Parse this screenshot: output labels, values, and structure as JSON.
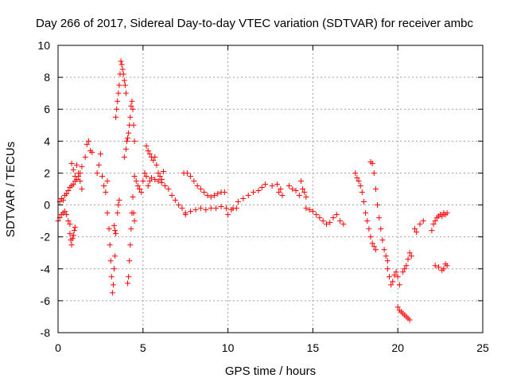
{
  "chart_data": {
    "type": "scatter",
    "title": "Day 266 of 2017, Sidereal Day-to-day VTEC variation (SDTVAR) for receiver ambc",
    "xlabel": "GPS time / hours",
    "ylabel": "SDTVAR / TECUs",
    "xlim": [
      0,
      25
    ],
    "ylim": [
      -8,
      10
    ],
    "xticks": [
      0,
      5,
      10,
      15,
      20,
      25
    ],
    "yticks": [
      -8,
      -6,
      -4,
      -2,
      0,
      2,
      4,
      6,
      8,
      10
    ],
    "grid": true,
    "marker": "+",
    "color": "#ff0000",
    "series": [
      {
        "name": "seg1",
        "x": [
          0.0,
          0.1,
          0.2,
          0.3,
          0.4,
          0.5,
          0.6,
          0.7,
          0.8,
          0.9,
          1.0,
          1.1,
          1.2,
          1.3,
          1.4
        ],
        "y": [
          -1.0,
          0.2,
          0.4,
          0.3,
          0.6,
          0.7,
          0.9,
          1.1,
          1.2,
          1.3,
          1.5,
          1.6,
          1.8,
          2.0,
          2.4
        ]
      },
      {
        "name": "seg2",
        "x": [
          0.1,
          0.2,
          0.3,
          0.4,
          0.5,
          0.6,
          0.7
        ],
        "y": [
          -0.8,
          -0.6,
          -0.5,
          -0.4,
          -0.6,
          -1.0,
          -1.2
        ]
      },
      {
        "name": "seg3",
        "x": [
          0.7,
          0.75,
          0.8,
          0.85,
          0.9,
          0.95,
          1.0
        ],
        "y": [
          -1.8,
          -2.2,
          -2.5,
          -2.1,
          -1.9,
          -1.6,
          -1.4
        ]
      },
      {
        "name": "seg4",
        "x": [
          0.8,
          0.9,
          1.0,
          1.1,
          1.2,
          1.3,
          1.4
        ],
        "y": [
          2.6,
          2.2,
          1.8,
          2.5,
          2.0,
          1.5,
          1.0
        ]
      },
      {
        "name": "seg5",
        "x": [
          1.6,
          1.7,
          1.8,
          1.9,
          2.0
        ],
        "y": [
          3.0,
          3.8,
          4.0,
          3.4,
          3.3
        ]
      },
      {
        "name": "seg6",
        "x": [
          2.3,
          2.4,
          2.5,
          2.6,
          2.7,
          2.8,
          2.9
        ],
        "y": [
          2.0,
          2.5,
          3.2,
          1.8,
          1.2,
          0.8,
          1.5
        ]
      },
      {
        "name": "seg7",
        "x": [
          2.9,
          3.0,
          3.05,
          3.1,
          3.15,
          3.2,
          3.25,
          3.3,
          3.35
        ],
        "y": [
          -0.5,
          -1.5,
          -2.5,
          -3.5,
          -4.5,
          -5.5,
          -5.0,
          -4.0,
          -3.2
        ]
      },
      {
        "name": "seg8",
        "x": [
          3.3,
          3.35,
          3.4,
          3.5,
          3.55,
          3.6
        ],
        "y": [
          -1.3,
          -1.6,
          -1.8,
          -0.5,
          0.0,
          0.3
        ]
      },
      {
        "name": "seg9",
        "x": [
          3.4,
          3.45,
          3.5,
          3.55,
          3.6,
          3.65,
          3.7,
          3.75,
          3.8,
          3.85,
          3.9,
          3.95,
          4.0
        ],
        "y": [
          5.5,
          6.0,
          6.5,
          7.0,
          7.5,
          8.2,
          9.0,
          8.8,
          8.5,
          8.2,
          7.8,
          7.5,
          7.0
        ]
      },
      {
        "name": "seg10",
        "x": [
          3.9,
          4.0,
          4.05,
          4.1,
          4.15,
          4.2,
          4.25,
          4.3,
          4.35,
          4.4,
          4.45,
          4.5
        ],
        "y": [
          3.0,
          3.5,
          4.0,
          4.2,
          4.5,
          5.0,
          5.5,
          6.2,
          6.5,
          6.0,
          5.0,
          4.0
        ]
      },
      {
        "name": "seg11",
        "x": [
          4.1,
          4.15,
          4.2,
          4.25,
          4.3,
          4.35,
          4.4,
          4.45,
          4.5
        ],
        "y": [
          -4.9,
          -4.5,
          -3.5,
          -2.5,
          -1.5,
          -0.5,
          0.5,
          -0.5,
          -1.0
        ]
      },
      {
        "name": "seg12",
        "x": [
          4.5,
          4.6,
          4.7,
          4.8,
          4.9,
          5.0,
          5.1,
          5.2,
          5.3,
          5.4,
          5.5
        ],
        "y": [
          1.8,
          1.5,
          1.2,
          1.0,
          0.8,
          1.5,
          2.0,
          1.8,
          1.2,
          1.5,
          1.7
        ]
      },
      {
        "name": "seg13",
        "x": [
          5.2,
          5.3,
          5.4,
          5.5,
          5.6,
          5.7,
          5.8,
          5.9,
          6.0,
          6.1,
          6.2
        ],
        "y": [
          3.7,
          3.4,
          3.2,
          3.0,
          2.8,
          3.0,
          2.5,
          2.0,
          1.8,
          1.6,
          2.1
        ]
      },
      {
        "name": "seg14",
        "x": [
          5.5,
          5.7,
          5.9,
          6.1,
          6.3,
          6.5,
          6.7,
          6.9,
          7.1,
          7.3,
          7.5
        ],
        "y": [
          1.7,
          1.6,
          1.5,
          1.4,
          1.2,
          1.0,
          0.6,
          0.3,
          0.0,
          -0.2,
          -0.5
        ]
      },
      {
        "name": "seg15",
        "x": [
          7.4,
          7.6,
          7.8,
          8.0,
          8.2,
          8.4,
          8.6,
          8.8,
          9.0,
          9.2,
          9.4,
          9.6,
          9.8
        ],
        "y": [
          2.0,
          2.0,
          1.8,
          1.5,
          1.2,
          1.0,
          0.8,
          0.6,
          0.5,
          0.6,
          0.7,
          0.8,
          0.8
        ]
      },
      {
        "name": "seg16",
        "x": [
          7.5,
          7.8,
          8.1,
          8.4,
          8.7,
          9.0,
          9.3,
          9.6,
          9.9,
          10.2,
          10.5
        ],
        "y": [
          -0.6,
          -0.4,
          -0.3,
          -0.2,
          -0.3,
          -0.2,
          -0.2,
          -0.1,
          -0.2,
          -0.3,
          -0.2
        ]
      },
      {
        "name": "seg17",
        "x": [
          10.0,
          10.3,
          10.6,
          10.9,
          11.2,
          11.5,
          11.8,
          12.0,
          12.2
        ],
        "y": [
          -0.6,
          -0.2,
          0.2,
          0.4,
          0.6,
          0.8,
          0.9,
          1.1,
          1.3
        ]
      },
      {
        "name": "seg18",
        "x": [
          12.6,
          12.9,
          13.0,
          13.1,
          13.2,
          13.6,
          13.8,
          14.0,
          14.2,
          14.3,
          14.4,
          14.5,
          14.6
        ],
        "y": [
          1.2,
          1.3,
          0.8,
          1.0,
          0.6,
          1.2,
          1.0,
          0.9,
          0.6,
          1.5,
          1.0,
          0.8,
          0.5
        ]
      },
      {
        "name": "seg19",
        "x": [
          14.6,
          14.8,
          15.0,
          15.2,
          15.4,
          15.6,
          15.8,
          16.0,
          16.2,
          16.4,
          16.6,
          16.8
        ],
        "y": [
          -0.2,
          -0.3,
          -0.4,
          -0.6,
          -0.8,
          -1.0,
          -1.2,
          -1.1,
          -0.8,
          -0.6,
          -1.0,
          -1.2
        ]
      },
      {
        "name": "seg20",
        "x": [
          17.5,
          17.6,
          17.7,
          17.8,
          17.9,
          18.0,
          18.1,
          18.2,
          18.3,
          18.4,
          18.5,
          18.6,
          18.7
        ],
        "y": [
          2.0,
          1.7,
          1.5,
          1.2,
          0.8,
          0.2,
          -0.5,
          -1.0,
          -1.5,
          -2.0,
          -2.4,
          -2.6,
          -2.8
        ]
      },
      {
        "name": "seg21",
        "x": [
          18.4,
          18.5,
          18.6,
          18.7,
          18.8,
          18.9,
          19.0,
          19.1,
          19.2,
          19.3,
          19.4
        ],
        "y": [
          2.7,
          2.6,
          2.0,
          1.0,
          0.0,
          -0.8,
          -1.5,
          -2.2,
          -2.8,
          -3.2,
          -3.5
        ]
      },
      {
        "name": "seg22",
        "x": [
          19.4,
          19.5,
          19.6,
          19.7,
          19.8,
          19.9,
          20.0,
          20.1
        ],
        "y": [
          -4.0,
          -4.5,
          -5.0,
          -4.8,
          -4.4,
          -4.2,
          -4.5,
          -5.0
        ]
      },
      {
        "name": "seg23",
        "x": [
          20.0,
          20.1,
          20.2,
          20.3,
          20.4,
          20.5,
          20.6,
          20.7
        ],
        "y": [
          -6.4,
          -6.6,
          -6.7,
          -6.8,
          -6.9,
          -7.0,
          -7.1,
          -7.2
        ]
      },
      {
        "name": "seg24",
        "x": [
          20.3,
          20.4,
          20.5,
          20.6,
          20.7,
          20.8
        ],
        "y": [
          -4.2,
          -4.0,
          -3.8,
          -3.4,
          -3.0,
          -3.2
        ]
      },
      {
        "name": "seg25",
        "x": [
          21.0,
          21.1,
          21.3,
          21.5
        ],
        "y": [
          -1.5,
          -1.7,
          -1.2,
          -1.0
        ]
      },
      {
        "name": "seg26",
        "x": [
          22.0,
          22.1,
          22.2,
          22.3,
          22.4,
          22.5,
          22.6,
          22.7,
          22.8,
          22.9
        ],
        "y": [
          -1.6,
          -1.2,
          -1.0,
          -0.8,
          -0.7,
          -0.6,
          -0.7,
          -0.5,
          -0.6,
          -0.5
        ]
      },
      {
        "name": "seg27",
        "x": [
          22.2,
          22.4,
          22.6,
          22.7,
          22.8,
          22.9
        ],
        "y": [
          -3.8,
          -3.9,
          -4.1,
          -4.0,
          -3.7,
          -3.8
        ]
      }
    ]
  }
}
